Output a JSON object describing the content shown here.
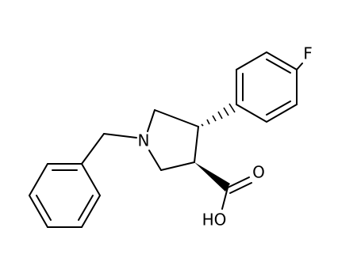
{
  "atoms": {
    "nitrogen": "N",
    "fluorine": "F",
    "carbonyl_oxygen": "O",
    "hydroxyl": "HO"
  }
}
